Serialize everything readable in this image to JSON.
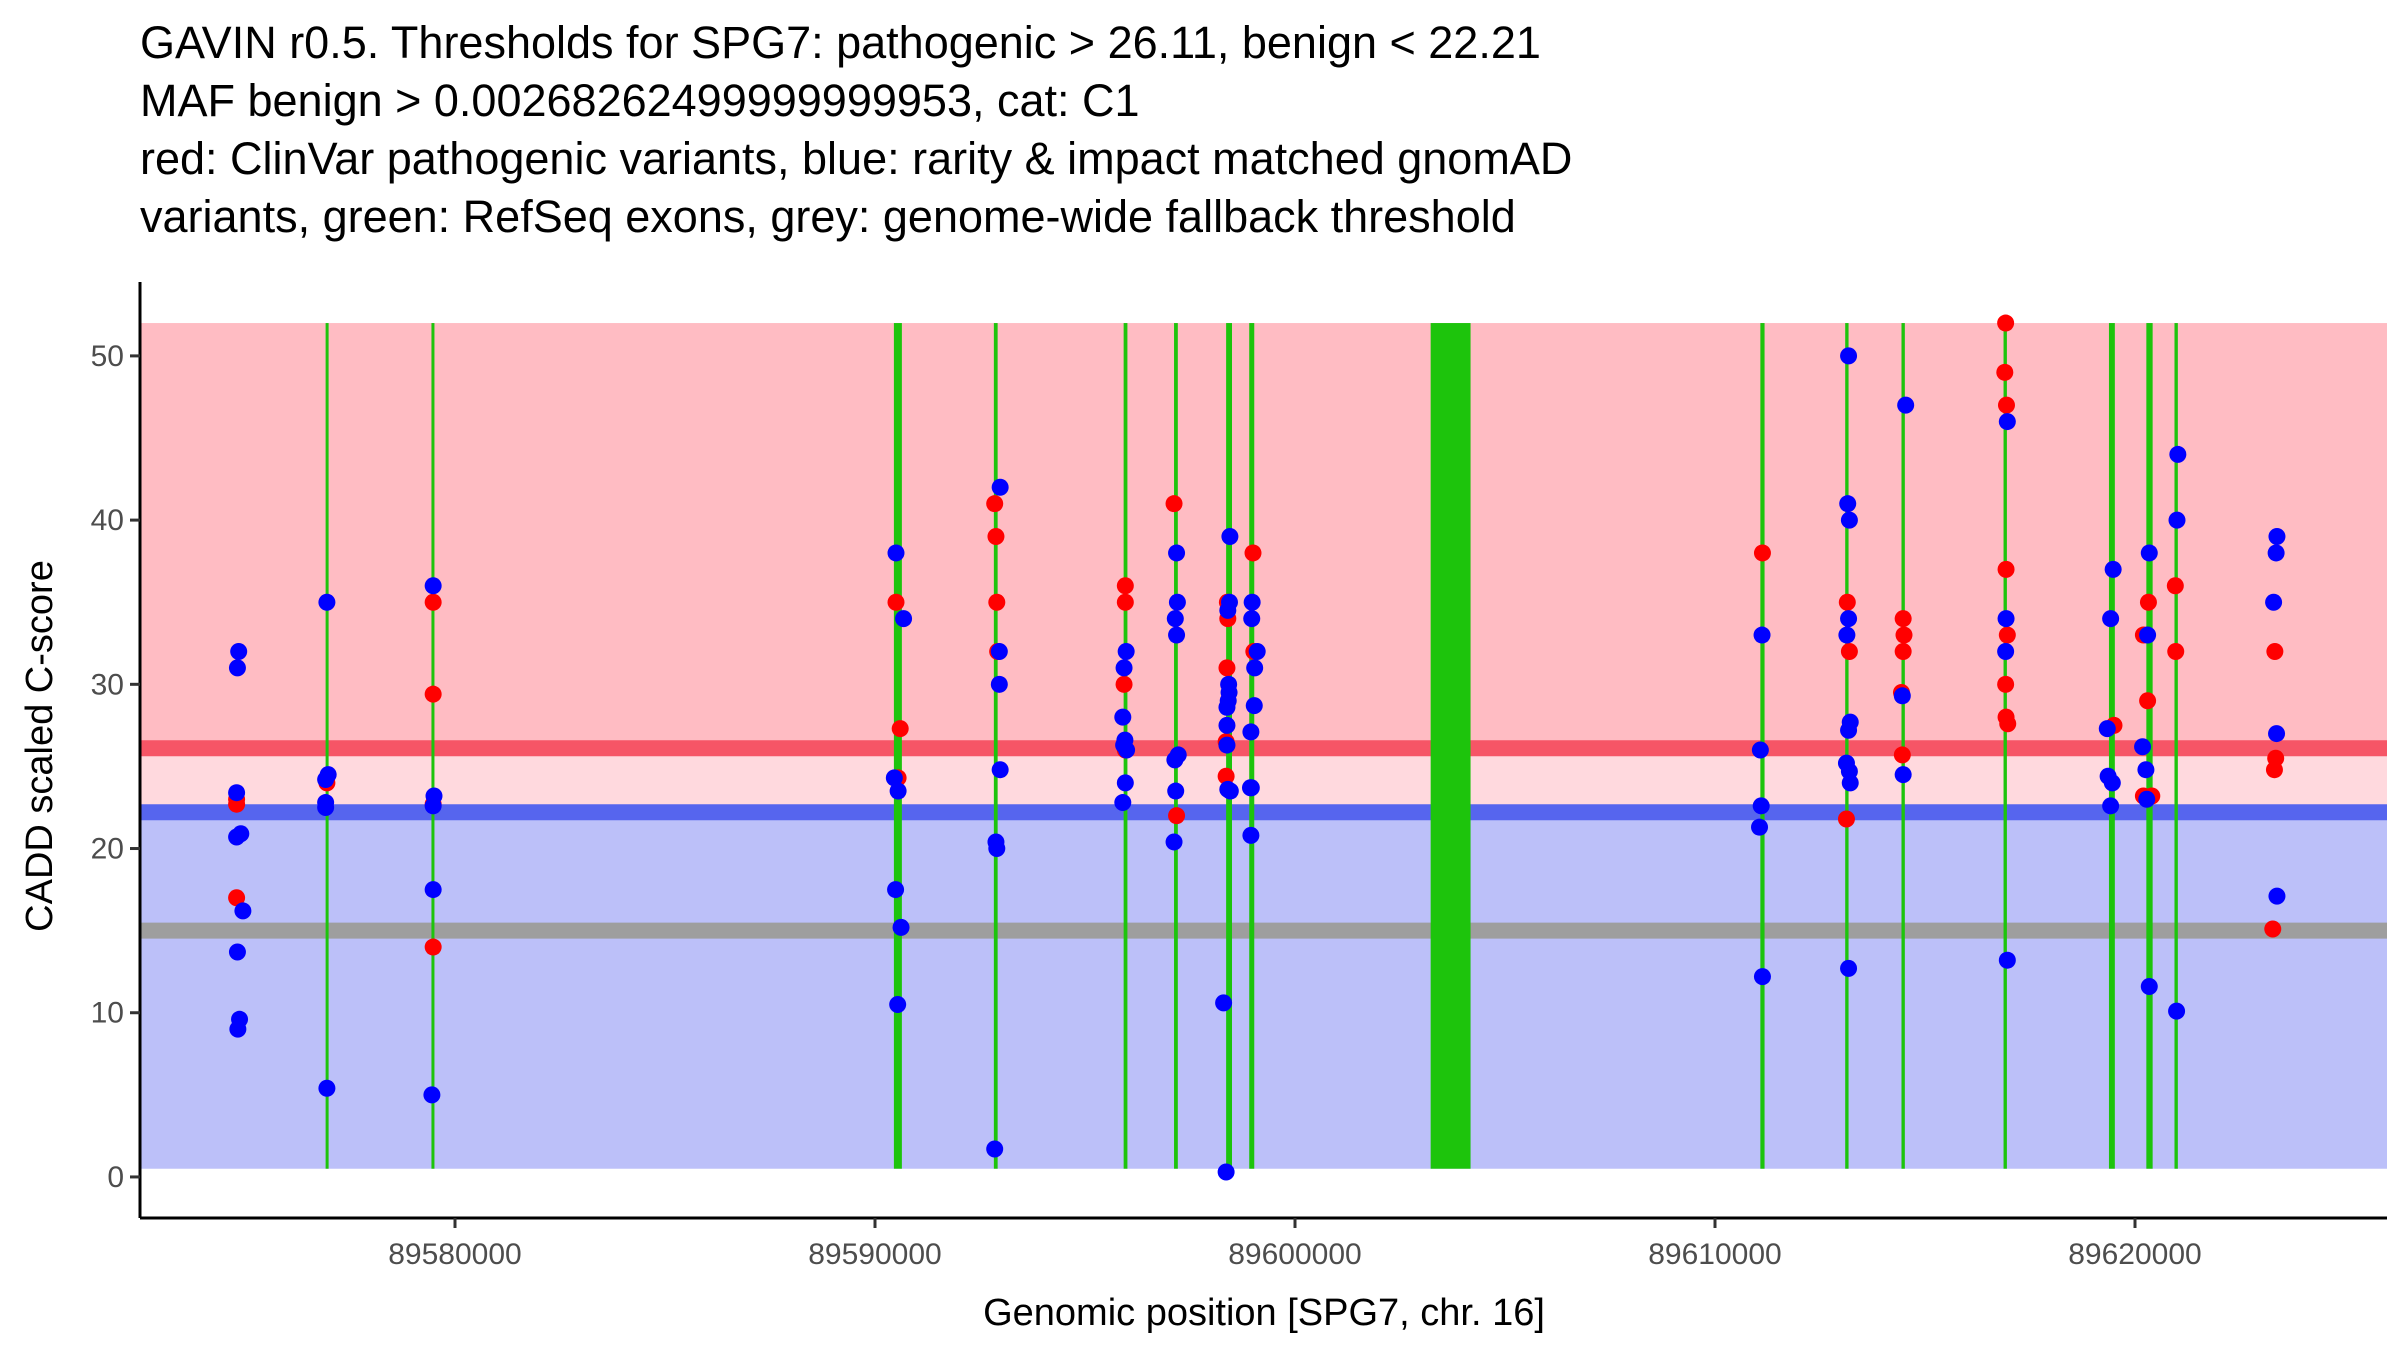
{
  "title_lines": [
    "GAVIN r0.5. Thresholds for SPG7: pathogenic > 26.11, benign < 22.21",
    "MAF benign > 0.00268262499999999953, cat: C1",
    "red: ClinVar pathogenic variants, blue: rarity & impact matched gnomAD",
    "variants, green: RefSeq exons, grey: genome-wide fallback threshold"
  ],
  "chart_data": {
    "type": "scatter",
    "title": "GAVIN r0.5. Thresholds for SPG7: pathogenic > 26.11, benign < 22.21",
    "xlabel": "Genomic position [SPG7, chr. 16]",
    "ylabel": "CADD scaled C-score",
    "xlim": [
      89572500,
      89626000
    ],
    "ylim": [
      -2.5,
      54.5
    ],
    "xticks": [
      89580000,
      89590000,
      89600000,
      89610000,
      89620000
    ],
    "xtick_labels": [
      "89580000",
      "89590000",
      "89600000",
      "89610000",
      "89620000"
    ],
    "yticks": [
      0,
      10,
      20,
      30,
      40,
      50
    ],
    "ytick_labels": [
      "0",
      "10",
      "20",
      "30",
      "40",
      "50"
    ],
    "grid": false,
    "regions": {
      "x_start": 89572500,
      "x_end": 89626000,
      "pathogenic_zone": {
        "y0": 26.11,
        "y1": 52,
        "color": "#FFBCC3"
      },
      "middle_zone": {
        "y0": 22.21,
        "y1": 26.11,
        "color": "#FFD9DE"
      },
      "benign_zone": {
        "y0": 0.5,
        "y1": 22.21,
        "color": "#BCC0F9"
      }
    },
    "threshold_lines": [
      {
        "name": "pathogenic",
        "y": 26.11,
        "color": "#F65566"
      },
      {
        "name": "benign",
        "y": 22.21,
        "color": "#5665EE"
      },
      {
        "name": "genome-wide fallback",
        "y": 15.0,
        "color": "#9E9E9E"
      }
    ],
    "exons": {
      "color": "#1DC40C",
      "items": [
        {
          "start": 89576920,
          "end": 89576990
        },
        {
          "start": 89579440,
          "end": 89579510
        },
        {
          "start": 89590450,
          "end": 89590640
        },
        {
          "start": 89592830,
          "end": 89592920
        },
        {
          "start": 89595920,
          "end": 89596010
        },
        {
          "start": 89597120,
          "end": 89597210
        },
        {
          "start": 89598360,
          "end": 89598500
        },
        {
          "start": 89598910,
          "end": 89599030
        },
        {
          "start": 89603230,
          "end": 89604180
        },
        {
          "start": 89611080,
          "end": 89611180
        },
        {
          "start": 89613100,
          "end": 89613180
        },
        {
          "start": 89614440,
          "end": 89614520
        },
        {
          "start": 89616870,
          "end": 89616950
        },
        {
          "start": 89619380,
          "end": 89619520
        },
        {
          "start": 89620270,
          "end": 89620420
        },
        {
          "start": 89620940,
          "end": 89621020
        }
      ]
    },
    "series": [
      {
        "name": "ClinVar pathogenic variants",
        "color": "#FF0000",
        "points": [
          [
            89574800,
            23.0
          ],
          [
            89574800,
            22.7
          ],
          [
            89574800,
            17.0
          ],
          [
            89576950,
            24.0
          ],
          [
            89579480,
            35.0
          ],
          [
            89579480,
            29.4
          ],
          [
            89579480,
            22.7
          ],
          [
            89579480,
            14.0
          ],
          [
            89590500,
            35.0
          ],
          [
            89590550,
            24.3
          ],
          [
            89590600,
            27.3
          ],
          [
            89592850,
            41.0
          ],
          [
            89592880,
            39.0
          ],
          [
            89592900,
            35.0
          ],
          [
            89592920,
            32.0
          ],
          [
            89595960,
            36.0
          ],
          [
            89595960,
            35.0
          ],
          [
            89595930,
            30.0
          ],
          [
            89595960,
            26.0
          ],
          [
            89597120,
            41.0
          ],
          [
            89597180,
            22.0
          ],
          [
            89598390,
            35.0
          ],
          [
            89598400,
            34.0
          ],
          [
            89598380,
            31.0
          ],
          [
            89598360,
            26.5
          ],
          [
            89598360,
            24.4
          ],
          [
            89599000,
            38.0
          ],
          [
            89599020,
            32.0
          ],
          [
            89611130,
            38.0
          ],
          [
            89613150,
            35.0
          ],
          [
            89613200,
            32.0
          ],
          [
            89613130,
            21.8
          ],
          [
            89614480,
            34.0
          ],
          [
            89614500,
            33.0
          ],
          [
            89614480,
            32.0
          ],
          [
            89614440,
            29.5
          ],
          [
            89614460,
            25.7
          ],
          [
            89616920,
            52.0
          ],
          [
            89616900,
            49.0
          ],
          [
            89616940,
            47.0
          ],
          [
            89616930,
            37.0
          ],
          [
            89616960,
            33.0
          ],
          [
            89616920,
            30.0
          ],
          [
            89616930,
            28.0
          ],
          [
            89616970,
            27.6
          ],
          [
            89619500,
            27.5
          ],
          [
            89620200,
            33.0
          ],
          [
            89620320,
            35.0
          ],
          [
            89620300,
            29.0
          ],
          [
            89620200,
            23.2
          ],
          [
            89620400,
            23.2
          ],
          [
            89620960,
            36.0
          ],
          [
            89620970,
            32.0
          ],
          [
            89623330,
            32.0
          ],
          [
            89623350,
            25.5
          ],
          [
            89623320,
            24.8
          ],
          [
            89623280,
            15.1
          ]
        ]
      },
      {
        "name": "rarity & impact matched gnomAD variants",
        "color": "#0000FF",
        "points": [
          [
            89574850,
            32.0
          ],
          [
            89574820,
            31.0
          ],
          [
            89574800,
            23.4
          ],
          [
            89574800,
            20.7
          ],
          [
            89574900,
            20.9
          ],
          [
            89574950,
            16.2
          ],
          [
            89574820,
            13.7
          ],
          [
            89574870,
            9.6
          ],
          [
            89574830,
            9.0
          ],
          [
            89576950,
            35.0
          ],
          [
            89576980,
            24.5
          ],
          [
            89576920,
            24.2
          ],
          [
            89576920,
            22.8
          ],
          [
            89576920,
            22.5
          ],
          [
            89576950,
            5.4
          ],
          [
            89579480,
            36.0
          ],
          [
            89579500,
            23.2
          ],
          [
            89579480,
            22.6
          ],
          [
            89579480,
            17.5
          ],
          [
            89579450,
            5.0
          ],
          [
            89590500,
            38.0
          ],
          [
            89590680,
            34.0
          ],
          [
            89590460,
            24.3
          ],
          [
            89590550,
            23.5
          ],
          [
            89590490,
            17.5
          ],
          [
            89590540,
            10.5
          ],
          [
            89590620,
            15.2
          ],
          [
            89592980,
            42.0
          ],
          [
            89592960,
            32.0
          ],
          [
            89592960,
            30.0
          ],
          [
            89592980,
            24.8
          ],
          [
            89592880,
            20.4
          ],
          [
            89592900,
            20.0
          ],
          [
            89592850,
            1.7
          ],
          [
            89595980,
            32.0
          ],
          [
            89595930,
            31.0
          ],
          [
            89595900,
            28.0
          ],
          [
            89595950,
            26.6
          ],
          [
            89595920,
            26.3
          ],
          [
            89595990,
            26.0
          ],
          [
            89595960,
            24.0
          ],
          [
            89595900,
            22.8
          ],
          [
            89597180,
            38.0
          ],
          [
            89597200,
            35.0
          ],
          [
            89597150,
            34.0
          ],
          [
            89597180,
            33.0
          ],
          [
            89597220,
            25.7
          ],
          [
            89597140,
            25.4
          ],
          [
            89597160,
            23.5
          ],
          [
            89597120,
            20.4
          ],
          [
            89598450,
            39.0
          ],
          [
            89598440,
            35.0
          ],
          [
            89598400,
            34.5
          ],
          [
            89598420,
            30.0
          ],
          [
            89598430,
            29.5
          ],
          [
            89598410,
            29.0
          ],
          [
            89598380,
            28.6
          ],
          [
            89598380,
            27.5
          ],
          [
            89598380,
            26.3
          ],
          [
            89598400,
            23.6
          ],
          [
            89598460,
            23.5
          ],
          [
            89598300,
            10.6
          ],
          [
            89598360,
            0.3
          ],
          [
            89598980,
            35.0
          ],
          [
            89598970,
            34.0
          ],
          [
            89599100,
            32.0
          ],
          [
            89599040,
            31.0
          ],
          [
            89599030,
            28.7
          ],
          [
            89598950,
            27.1
          ],
          [
            89598960,
            23.7
          ],
          [
            89598940,
            23.7
          ],
          [
            89598950,
            20.8
          ],
          [
            89611120,
            33.0
          ],
          [
            89611080,
            26.0
          ],
          [
            89611100,
            22.6
          ],
          [
            89611060,
            21.3
          ],
          [
            89611130,
            12.2
          ],
          [
            89613180,
            50.0
          ],
          [
            89613160,
            41.0
          ],
          [
            89613200,
            40.0
          ],
          [
            89613180,
            34.0
          ],
          [
            89613140,
            33.0
          ],
          [
            89613220,
            27.7
          ],
          [
            89613180,
            27.2
          ],
          [
            89613130,
            25.2
          ],
          [
            89613200,
            24.7
          ],
          [
            89613220,
            24.0
          ],
          [
            89613180,
            12.7
          ],
          [
            89614540,
            47.0
          ],
          [
            89614460,
            29.3
          ],
          [
            89614480,
            24.5
          ],
          [
            89616960,
            46.0
          ],
          [
            89616930,
            34.0
          ],
          [
            89616920,
            32.0
          ],
          [
            89616960,
            13.2
          ],
          [
            89619480,
            37.0
          ],
          [
            89619420,
            34.0
          ],
          [
            89619340,
            27.3
          ],
          [
            89619360,
            24.4
          ],
          [
            89619460,
            24.0
          ],
          [
            89619420,
            22.6
          ],
          [
            89620340,
            38.0
          ],
          [
            89620300,
            33.0
          ],
          [
            89620180,
            26.2
          ],
          [
            89620260,
            24.8
          ],
          [
            89620280,
            23.0
          ],
          [
            89620340,
            11.6
          ],
          [
            89621020,
            44.0
          ],
          [
            89621000,
            40.0
          ],
          [
            89620990,
            10.1
          ],
          [
            89623380,
            39.0
          ],
          [
            89623360,
            38.0
          ],
          [
            89623300,
            35.0
          ],
          [
            89623370,
            27.0
          ],
          [
            89623380,
            17.1
          ]
        ]
      }
    ]
  }
}
